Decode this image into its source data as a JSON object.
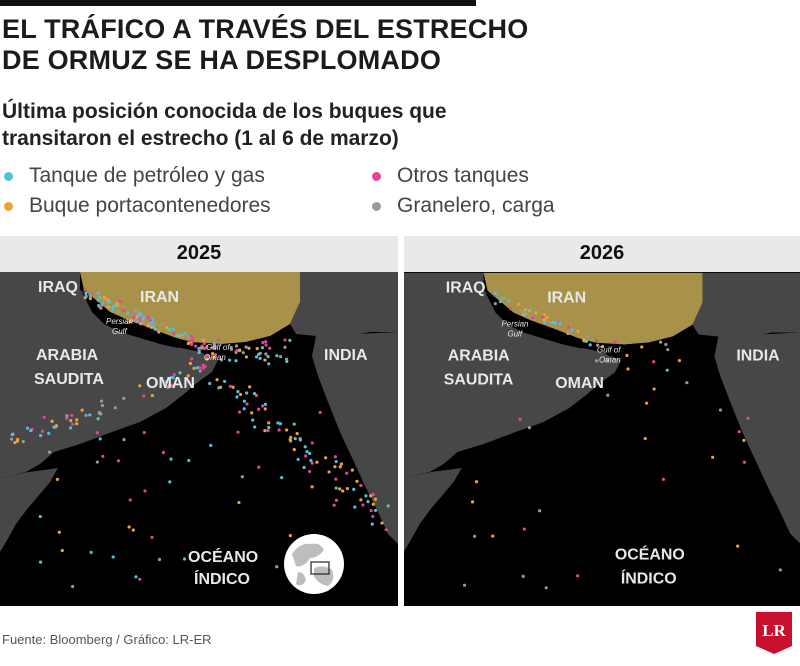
{
  "title_line1": "EL TRÁFICO A TRAVÉS DEL ESTRECHO",
  "title_line2": "DE ORMUZ SE HA DESPLOMADO",
  "subtitle_line1": "Última posición conocida de los buques que",
  "subtitle_line2": "transitaron el estrecho (1 al 6 de marzo)",
  "legend": [
    {
      "label": "Tanque de petróleo y gas",
      "color": "#4fc3d9"
    },
    {
      "label": "Otros tanques",
      "color": "#e0459a"
    },
    {
      "label": "Buque portacontenedores",
      "color": "#f0a23a"
    },
    {
      "label": "Granelero, carga",
      "color": "#9a9a9a"
    }
  ],
  "panels": [
    {
      "year": "2025",
      "labels": {
        "iraq": "IRAQ",
        "iran": "IRAN",
        "arabia1": "ARABIA",
        "arabia2": "SAUDITA",
        "oman": "OMAN",
        "india": "INDIA",
        "ocean1": "OCÉANO",
        "ocean2": "ÍNDICO",
        "persian1": "Persian",
        "persian2": "Gulf",
        "gulfoman1": "Gulf of",
        "gulfoman2": "Oman"
      }
    },
    {
      "year": "2026",
      "labels": {
        "iraq": "IRAQ",
        "iran": "IRAN",
        "arabia1": "ARABIA",
        "arabia2": "SAUDITA",
        "oman": "OMAN",
        "india": "INDIA",
        "ocean1": "OCÉANO",
        "ocean2": "ÍNDICO",
        "persian1": "Persian",
        "persian2": "Gulf",
        "gulfoman1": "Gulf of",
        "gulfoman2": "Oman"
      }
    }
  ],
  "source": "Fuente: Bloomberg / Gráfico: LR-ER",
  "logo_text": "LR",
  "colors": {
    "land": "#4a4a4a",
    "iran": "#a89249",
    "sea": "#000000",
    "logo": "#c8102e"
  }
}
